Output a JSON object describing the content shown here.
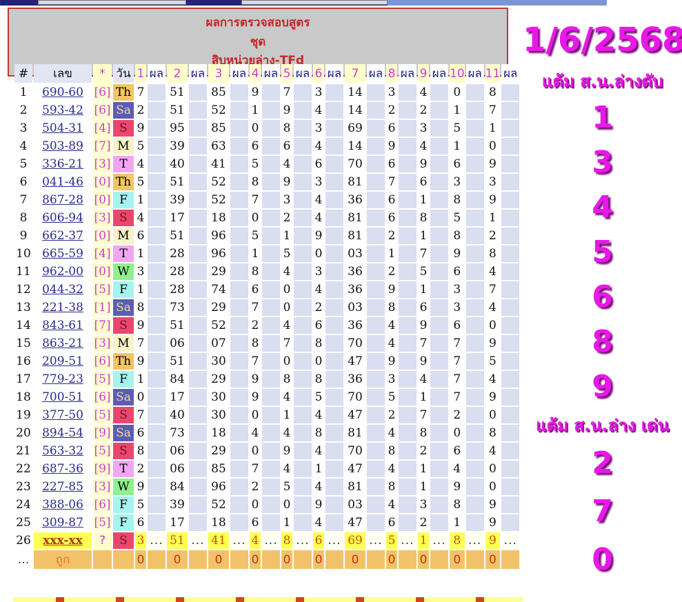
{
  "report_header": {
    "line1": "ผลการตรวจสอบสูตร",
    "line2": "ชุด",
    "line3": "สิบหน่วยล่าง-TFd"
  },
  "side_panel": {
    "date": "1/6/2568",
    "heading_cut": "แต้ม ส.น.ล่างดับ",
    "cut_digits": [
      "1",
      "3",
      "4",
      "5",
      "6",
      "8",
      "9"
    ],
    "heading_hot": "แต้ม ส.น.ล่าง เด่น",
    "hot_digits": [
      "2",
      "7",
      "0"
    ]
  },
  "table": {
    "static_headers": [
      "#",
      "เลข",
      "*",
      "วัน"
    ],
    "pair_labels": [
      "1",
      "2",
      "3",
      "4",
      "5",
      "6",
      "7",
      "8",
      "9",
      "10",
      "11"
    ],
    "result_header": "ผล",
    "rows": [
      {
        "n": "1",
        "number": "690-60",
        "star": "[6]",
        "day": "Th",
        "values": [
          "7",
          "51",
          "85",
          "9",
          "7",
          "3",
          "14",
          "3",
          "4",
          "0",
          "8"
        ]
      },
      {
        "n": "2",
        "number": "593-42",
        "star": "[6]",
        "day": "Sa",
        "values": [
          "2",
          "51",
          "52",
          "1",
          "9",
          "4",
          "14",
          "2",
          "2",
          "1",
          "7"
        ]
      },
      {
        "n": "3",
        "number": "504-31",
        "star": "[4]",
        "day": "S",
        "values": [
          "9",
          "95",
          "85",
          "0",
          "8",
          "3",
          "69",
          "6",
          "3",
          "5",
          "1"
        ]
      },
      {
        "n": "4",
        "number": "503-89",
        "star": "[7]",
        "day": "M",
        "values": [
          "5",
          "39",
          "63",
          "6",
          "6",
          "4",
          "14",
          "9",
          "4",
          "1",
          "0"
        ]
      },
      {
        "n": "5",
        "number": "336-21",
        "star": "[3]",
        "day": "T",
        "values": [
          "4",
          "40",
          "41",
          "5",
          "4",
          "6",
          "70",
          "6",
          "9",
          "6",
          "9"
        ]
      },
      {
        "n": "6",
        "number": "041-46",
        "star": "[0]",
        "day": "Th",
        "values": [
          "5",
          "51",
          "52",
          "8",
          "9",
          "3",
          "81",
          "7",
          "6",
          "3",
          "3"
        ]
      },
      {
        "n": "7",
        "number": "867-28",
        "star": "[0]",
        "day": "F",
        "values": [
          "1",
          "39",
          "52",
          "7",
          "3",
          "4",
          "36",
          "6",
          "1",
          "8",
          "9"
        ]
      },
      {
        "n": "8",
        "number": "606-94",
        "star": "[3]",
        "day": "S",
        "values": [
          "4",
          "17",
          "18",
          "0",
          "2",
          "4",
          "81",
          "6",
          "8",
          "5",
          "1"
        ]
      },
      {
        "n": "9",
        "number": "662-37",
        "star": "[0]",
        "day": "M",
        "values": [
          "6",
          "51",
          "96",
          "5",
          "1",
          "9",
          "81",
          "2",
          "1",
          "8",
          "2"
        ]
      },
      {
        "n": "10",
        "number": "665-59",
        "star": "[4]",
        "day": "T",
        "values": [
          "1",
          "28",
          "96",
          "1",
          "5",
          "0",
          "03",
          "1",
          "7",
          "9",
          "8"
        ]
      },
      {
        "n": "11",
        "number": "962-00",
        "star": "[0]",
        "day": "W",
        "values": [
          "3",
          "28",
          "29",
          "8",
          "4",
          "3",
          "36",
          "2",
          "5",
          "6",
          "4"
        ]
      },
      {
        "n": "12",
        "number": "044-32",
        "star": "[5]",
        "day": "F",
        "values": [
          "1",
          "28",
          "74",
          "6",
          "0",
          "4",
          "36",
          "9",
          "1",
          "3",
          "7"
        ]
      },
      {
        "n": "13",
        "number": "221-38",
        "star": "[1]",
        "day": "Sa",
        "values": [
          "8",
          "73",
          "29",
          "7",
          "0",
          "2",
          "03",
          "8",
          "6",
          "3",
          "4"
        ]
      },
      {
        "n": "14",
        "number": "843-61",
        "star": "[7]",
        "day": "S",
        "values": [
          "9",
          "51",
          "52",
          "2",
          "4",
          "6",
          "36",
          "4",
          "9",
          "6",
          "0"
        ]
      },
      {
        "n": "15",
        "number": "863-21",
        "star": "[3]",
        "day": "M",
        "values": [
          "7",
          "06",
          "07",
          "8",
          "7",
          "8",
          "70",
          "4",
          "7",
          "7",
          "9"
        ]
      },
      {
        "n": "16",
        "number": "209-51",
        "star": "[6]",
        "day": "Th",
        "values": [
          "9",
          "51",
          "30",
          "7",
          "0",
          "0",
          "47",
          "9",
          "9",
          "7",
          "5"
        ]
      },
      {
        "n": "17",
        "number": "779-23",
        "star": "[5]",
        "day": "F",
        "values": [
          "1",
          "84",
          "29",
          "9",
          "8",
          "8",
          "36",
          "3",
          "4",
          "7",
          "4"
        ]
      },
      {
        "n": "18",
        "number": "700-51",
        "star": "[6]",
        "day": "Sa",
        "values": [
          "0",
          "17",
          "30",
          "9",
          "4",
          "5",
          "70",
          "5",
          "1",
          "7",
          "9"
        ]
      },
      {
        "n": "19",
        "number": "377-50",
        "star": "[5]",
        "day": "S",
        "values": [
          "7",
          "40",
          "30",
          "0",
          "1",
          "4",
          "47",
          "2",
          "7",
          "2",
          "0"
        ]
      },
      {
        "n": "20",
        "number": "894-54",
        "star": "[9]",
        "day": "Sa",
        "values": [
          "6",
          "73",
          "18",
          "4",
          "4",
          "8",
          "81",
          "4",
          "8",
          "0",
          "8"
        ]
      },
      {
        "n": "21",
        "number": "563-32",
        "star": "[5]",
        "day": "S",
        "values": [
          "8",
          "06",
          "29",
          "0",
          "9",
          "4",
          "70",
          "8",
          "2",
          "6",
          "4"
        ]
      },
      {
        "n": "22",
        "number": "687-36",
        "star": "[9]",
        "day": "T",
        "values": [
          "2",
          "06",
          "85",
          "7",
          "4",
          "1",
          "47",
          "4",
          "1",
          "4",
          "0"
        ]
      },
      {
        "n": "23",
        "number": "227-85",
        "star": "[3]",
        "day": "W",
        "values": [
          "9",
          "84",
          "96",
          "2",
          "5",
          "4",
          "81",
          "8",
          "1",
          "9",
          "0"
        ]
      },
      {
        "n": "24",
        "number": "388-06",
        "star": "[6]",
        "day": "F",
        "values": [
          "5",
          "39",
          "52",
          "0",
          "0",
          "9",
          "03",
          "4",
          "3",
          "8",
          "9"
        ]
      },
      {
        "n": "25",
        "number": "309-87",
        "star": "[5]",
        "day": "F",
        "values": [
          "6",
          "17",
          "18",
          "6",
          "1",
          "4",
          "47",
          "6",
          "2",
          "1",
          "9"
        ]
      }
    ],
    "pending_row": {
      "n": "26",
      "number": "xxx-xx",
      "star": "?",
      "day": "S",
      "values": [
        "3",
        "51",
        "41",
        "4",
        "8",
        "6",
        "69",
        "5",
        "1",
        "8",
        "9"
      ],
      "dots": "..."
    },
    "footer": {
      "dots": "...",
      "label": "ถูก",
      "zeros": [
        "0",
        "0",
        "0",
        "0",
        "0",
        "0",
        "0",
        "0",
        "0",
        "0",
        "0"
      ]
    }
  },
  "colors": {
    "accent_magenta": "#e818e8",
    "header_red": "#c22828",
    "link_blue": "#2a2a8f",
    "day_Th": "#f2c464",
    "day_Sa": "#5c5cb8",
    "day_S": "#e8486e",
    "day_M": "#f8f3c8",
    "day_T": "#f2a6f2",
    "day_F": "#a6f4f0",
    "day_W": "#8ef08e",
    "pending_yellow": "#ffff55",
    "footer_tan": "#f2c26b"
  }
}
